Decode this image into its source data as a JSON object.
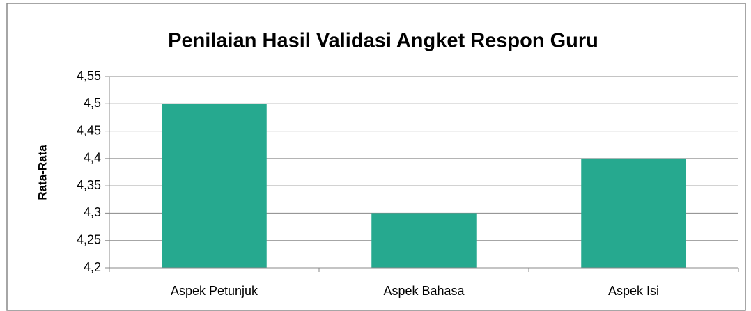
{
  "chart_data": {
    "type": "bar",
    "title": "Penilaian Hasil Validasi Angket Respon Guru",
    "y_label": "Rata-Rata",
    "categories": [
      "Aspek Petunjuk",
      "Aspek Bahasa",
      "Aspek Isi"
    ],
    "values": [
      4.5,
      4.3,
      4.4
    ],
    "color": "#26a98f",
    "ylim": [
      4.2,
      4.55
    ],
    "yticks": [
      {
        "value": 4.2,
        "label": "4,2"
      },
      {
        "value": 4.25,
        "label": "4,25"
      },
      {
        "value": 4.3,
        "label": "4,3"
      },
      {
        "value": 4.35,
        "label": "4,35"
      },
      {
        "value": 4.4,
        "label": "4,4"
      },
      {
        "value": 4.45,
        "label": "4,45"
      },
      {
        "value": 4.5,
        "label": "4,5"
      },
      {
        "value": 4.55,
        "label": "4,55"
      }
    ],
    "grid": true
  }
}
